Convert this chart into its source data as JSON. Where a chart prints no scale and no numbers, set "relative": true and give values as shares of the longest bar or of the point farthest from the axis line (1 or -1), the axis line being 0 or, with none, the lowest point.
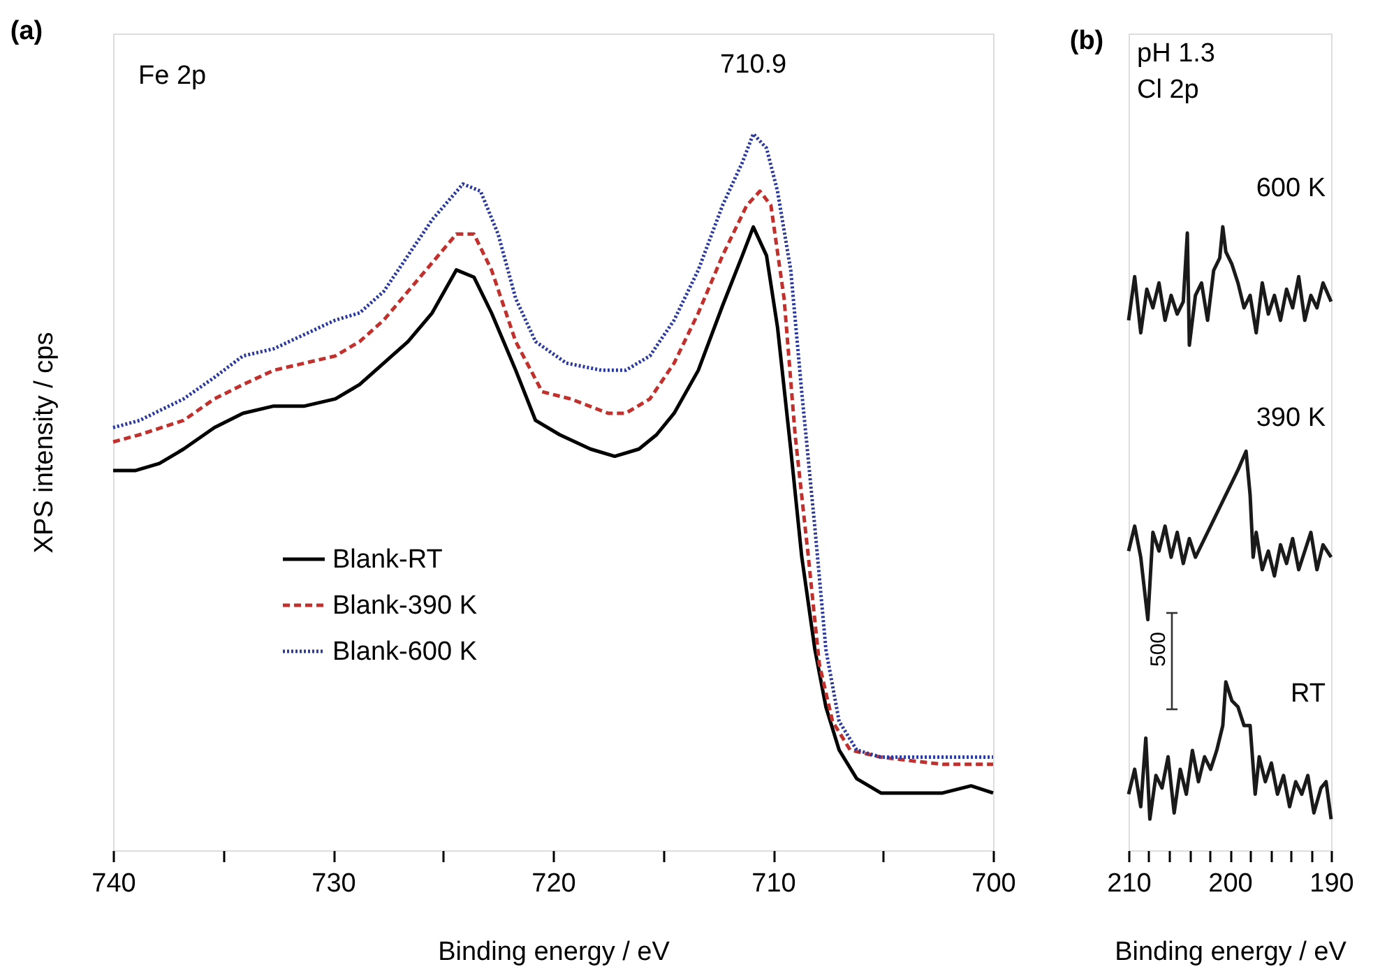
{
  "chart_data": [
    {
      "type": "line",
      "title": "(a)",
      "xlabel": "Binding energy / eV",
      "ylabel": "XPS intensity / cps",
      "relative": true,
      "tick_labels": "x",
      "legend": "left",
      "xlim": [
        740,
        700
      ],
      "xticks": [
        740,
        {
          "value": 735,
          "label": null
        },
        730,
        {
          "value": 725,
          "label": null
        },
        720,
        {
          "value": 715,
          "label": null
        },
        710,
        {
          "value": 705,
          "label": null
        },
        700
      ],
      "annotations": [
        "Fe 2p",
        {
          "text": "710.9",
          "x": 710.9,
          "y": 1.0
        }
      ],
      "series": [
        {
          "name": "Blank-RT",
          "color": "#000000",
          "line_style": "solid",
          "x": [
            740.0,
            739.0,
            737.9,
            736.8,
            735.4,
            734.1,
            732.7,
            731.3,
            729.9,
            728.8,
            727.7,
            726.6,
            725.5,
            724.4,
            723.6,
            722.8,
            721.7,
            720.8,
            719.7,
            718.3,
            717.2,
            716.1,
            715.3,
            714.5,
            713.4,
            712.3,
            711.4,
            710.9,
            710.3,
            709.8,
            709.2,
            708.7,
            708.1,
            707.6,
            707.0,
            706.2,
            705.1,
            703.7,
            702.3,
            701.0,
            700.0
          ],
          "values": [
            0.53,
            0.53,
            0.54,
            0.56,
            0.59,
            0.61,
            0.62,
            0.62,
            0.63,
            0.65,
            0.68,
            0.71,
            0.75,
            0.81,
            0.8,
            0.75,
            0.67,
            0.6,
            0.58,
            0.56,
            0.55,
            0.56,
            0.58,
            0.61,
            0.67,
            0.76,
            0.83,
            0.87,
            0.83,
            0.73,
            0.56,
            0.41,
            0.28,
            0.2,
            0.14,
            0.1,
            0.08,
            0.08,
            0.08,
            0.09,
            0.08
          ]
        },
        {
          "name": "Blank-390 K",
          "color": "#c0302c",
          "line_style": "dashed",
          "x": [
            740.0,
            738.8,
            736.8,
            735.4,
            734.1,
            732.7,
            731.3,
            729.9,
            728.8,
            727.7,
            726.6,
            725.5,
            724.4,
            723.6,
            722.8,
            721.7,
            720.5,
            719.2,
            717.5,
            716.7,
            715.6,
            714.5,
            713.4,
            712.3,
            711.2,
            710.6,
            710.1,
            709.5,
            709.0,
            708.4,
            707.9,
            707.3,
            706.5,
            705.1,
            702.3,
            700.0
          ],
          "values": [
            0.57,
            0.58,
            0.6,
            0.63,
            0.65,
            0.67,
            0.68,
            0.69,
            0.71,
            0.74,
            0.78,
            0.82,
            0.86,
            0.86,
            0.81,
            0.71,
            0.64,
            0.63,
            0.61,
            0.61,
            0.63,
            0.68,
            0.75,
            0.83,
            0.9,
            0.92,
            0.9,
            0.77,
            0.58,
            0.41,
            0.26,
            0.18,
            0.14,
            0.13,
            0.12,
            0.12
          ]
        },
        {
          "name": "Blank-600 K",
          "color": "#2b3a9a",
          "line_style": "dotted",
          "x": [
            740.0,
            738.8,
            736.8,
            735.4,
            734.1,
            732.7,
            731.3,
            729.9,
            728.8,
            727.7,
            726.6,
            725.5,
            724.1,
            723.3,
            722.5,
            721.7,
            720.8,
            719.4,
            717.8,
            716.7,
            715.6,
            714.5,
            713.4,
            712.3,
            711.4,
            710.9,
            710.3,
            709.8,
            709.2,
            708.7,
            708.1,
            707.6,
            707.0,
            706.2,
            705.1,
            702.3,
            700.0
          ],
          "values": [
            0.59,
            0.6,
            0.63,
            0.66,
            0.69,
            0.7,
            0.72,
            0.74,
            0.75,
            0.78,
            0.83,
            0.88,
            0.93,
            0.92,
            0.86,
            0.77,
            0.71,
            0.68,
            0.67,
            0.67,
            0.69,
            0.74,
            0.81,
            0.9,
            0.96,
            1.0,
            0.98,
            0.92,
            0.81,
            0.64,
            0.45,
            0.28,
            0.18,
            0.14,
            0.13,
            0.13,
            0.13
          ]
        }
      ]
    },
    {
      "type": "line",
      "title": "(b)",
      "xlabel": "Binding energy / eV",
      "relative": true,
      "tick_labels": "x",
      "xlim": [
        210,
        190
      ],
      "xticks": [
        210,
        {
          "value": 208,
          "label": null
        },
        {
          "value": 206,
          "label": null
        },
        {
          "value": 204,
          "label": null
        },
        {
          "value": 202,
          "label": null
        },
        200,
        {
          "value": 198,
          "label": null
        },
        {
          "value": 196,
          "label": null
        },
        {
          "value": 194,
          "label": null
        },
        {
          "value": 192,
          "label": null
        },
        190
      ],
      "annotations": [
        "pH 1.3",
        "Cl 2p",
        "500"
      ],
      "series": [
        {
          "name": "600 K",
          "color": "#1a1a1a",
          "line_style": "solid",
          "x": [
            210.0,
            209.4,
            208.8,
            208.2,
            207.6,
            207.0,
            206.4,
            205.8,
            205.2,
            204.6,
            204.2,
            204.0,
            203.4,
            202.8,
            202.2,
            201.6,
            201.0,
            200.7,
            200.4,
            199.8,
            199.2,
            198.6,
            198.0,
            197.4,
            196.8,
            196.2,
            195.6,
            195.0,
            194.4,
            193.8,
            193.2,
            192.6,
            192.0,
            191.4,
            190.8,
            190.0
          ],
          "values": [
            0.85,
            0.92,
            0.83,
            0.9,
            0.87,
            0.91,
            0.85,
            0.89,
            0.86,
            0.88,
            0.99,
            0.81,
            0.89,
            0.91,
            0.85,
            0.93,
            0.95,
            1.0,
            0.96,
            0.94,
            0.91,
            0.87,
            0.89,
            0.83,
            0.91,
            0.86,
            0.89,
            0.85,
            0.9,
            0.87,
            0.92,
            0.85,
            0.89,
            0.87,
            0.91,
            0.88
          ]
        },
        {
          "name": "390 K",
          "color": "#1a1a1a",
          "line_style": "solid",
          "x": [
            210.0,
            209.4,
            208.8,
            208.1,
            207.6,
            207.0,
            206.4,
            205.8,
            205.2,
            204.6,
            204.0,
            203.4,
            202.8,
            202.2,
            201.6,
            201.0,
            200.4,
            199.8,
            199.2,
            198.4,
            198.0,
            197.7,
            197.4,
            196.8,
            196.2,
            195.6,
            195.0,
            194.4,
            193.8,
            193.2,
            192.6,
            192.0,
            191.4,
            190.8,
            190.0
          ],
          "values": [
            0.48,
            0.52,
            0.47,
            0.37,
            0.51,
            0.48,
            0.52,
            0.47,
            0.51,
            0.46,
            0.5,
            0.47,
            0.49,
            0.51,
            0.53,
            0.55,
            0.57,
            0.59,
            0.61,
            0.64,
            0.57,
            0.47,
            0.51,
            0.45,
            0.48,
            0.44,
            0.49,
            0.46,
            0.5,
            0.45,
            0.48,
            0.51,
            0.45,
            0.49,
            0.47
          ]
        },
        {
          "name": "RT",
          "color": "#1a1a1a",
          "line_style": "solid",
          "x": [
            210.0,
            209.4,
            208.8,
            208.3,
            207.9,
            207.3,
            206.7,
            206.1,
            205.5,
            204.9,
            204.3,
            203.7,
            203.1,
            202.5,
            201.9,
            201.3,
            200.7,
            200.4,
            199.8,
            199.2,
            198.6,
            198.0,
            197.5,
            197.1,
            196.5,
            195.9,
            195.3,
            194.7,
            194.1,
            193.5,
            192.9,
            192.3,
            191.7,
            191.0,
            190.5,
            190.0
          ],
          "values": [
            0.09,
            0.13,
            0.07,
            0.18,
            0.05,
            0.12,
            0.1,
            0.15,
            0.06,
            0.13,
            0.09,
            0.16,
            0.11,
            0.15,
            0.13,
            0.16,
            0.2,
            0.27,
            0.24,
            0.23,
            0.2,
            0.2,
            0.09,
            0.15,
            0.11,
            0.14,
            0.09,
            0.12,
            0.07,
            0.11,
            0.09,
            0.12,
            0.06,
            0.1,
            0.11,
            0.05
          ]
        }
      ]
    }
  ]
}
